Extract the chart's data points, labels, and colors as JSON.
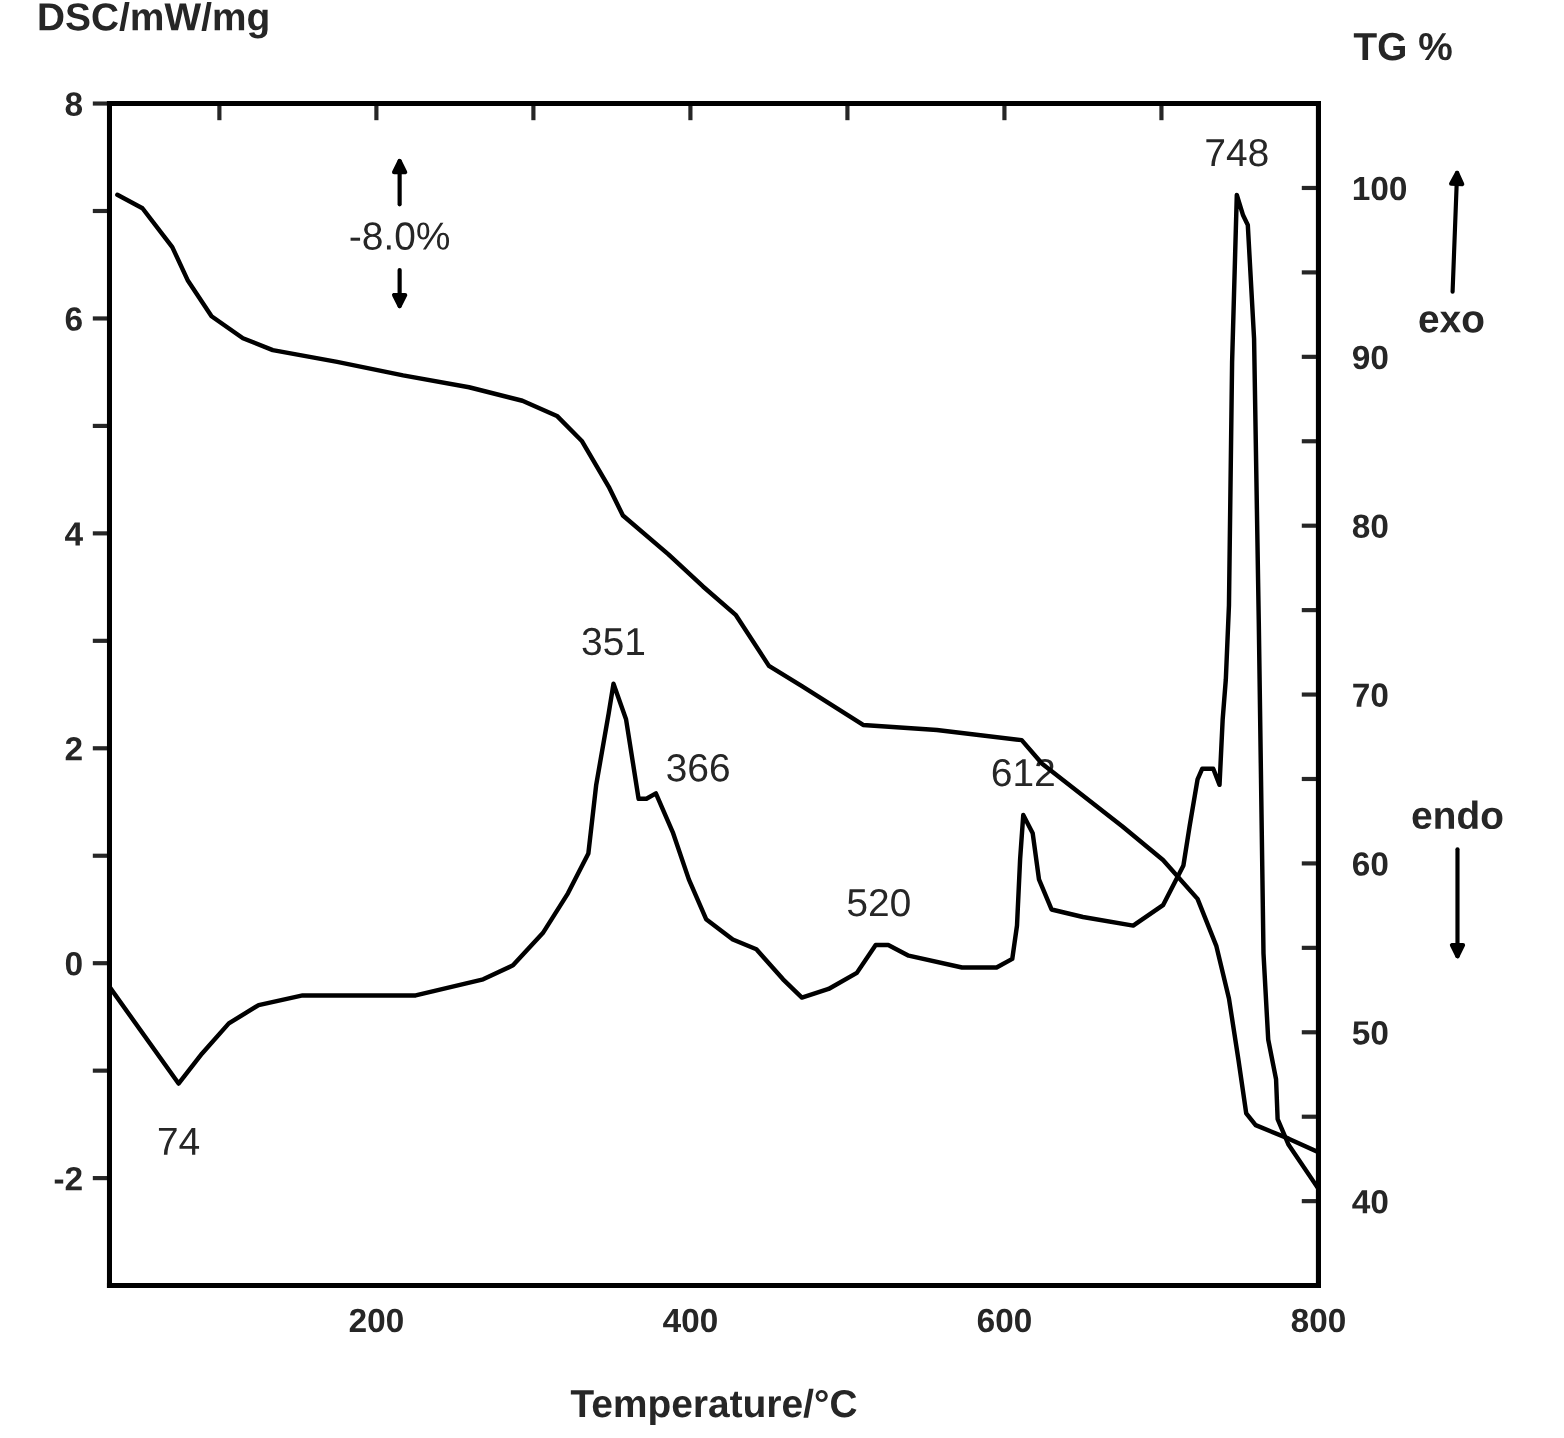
{
  "chart_data": {
    "type": "line",
    "xlabel": "Temperature/°C",
    "ylabel": "DSC/mW/mg",
    "y2label": "TG %",
    "xlim": [
      30,
      800
    ],
    "xticks": [
      {
        "value": 100,
        "label": null
      },
      200,
      {
        "value": 300,
        "label": null
      },
      400,
      {
        "value": 500,
        "label": null
      },
      600,
      {
        "value": 700,
        "label": null
      },
      800
    ],
    "ylim": [
      -3,
      8
    ],
    "yticks": [
      -2,
      {
        "value": -1,
        "label": null
      },
      0,
      {
        "value": 1,
        "label": null
      },
      2,
      {
        "value": 3,
        "label": null
      },
      4,
      {
        "value": 5,
        "label": null
      },
      6,
      {
        "value": 7,
        "label": null
      },
      8
    ],
    "y2lim": [
      35,
      105
    ],
    "y2ticks": [
      40,
      {
        "value": 45,
        "label": null
      },
      50,
      {
        "value": 55,
        "label": null
      },
      60,
      {
        "value": 65,
        "label": null
      },
      70,
      {
        "value": 75,
        "label": null
      },
      80,
      {
        "value": 85,
        "label": null
      },
      90,
      {
        "value": 95,
        "label": null
      },
      100
    ],
    "grid": false,
    "legend": false,
    "marker": "none",
    "line_style": "solid",
    "series": [
      {
        "color": "#000000",
        "x": [
          30,
          74,
          89,
          106,
          125,
          153,
          225,
          268,
          287,
          306,
          322,
          335,
          340,
          348,
          351,
          359,
          367,
          372,
          378,
          389,
          399,
          410,
          427,
          442,
          459,
          471,
          488,
          506,
          518,
          526,
          539,
          573,
          595,
          605,
          608,
          610,
          612,
          618,
          622,
          630,
          650,
          682,
          701,
          714,
          718,
          723,
          726,
          733,
          737,
          739,
          741,
          743,
          745,
          748,
          752,
          755,
          759,
          762,
          765,
          768,
          773,
          774,
          781,
          800
        ],
        "values": [
          -0.22,
          -1.12,
          -0.84,
          -0.56,
          -0.39,
          -0.3,
          -0.3,
          -0.15,
          -0.02,
          0.28,
          0.65,
          1.02,
          1.66,
          2.33,
          2.6,
          2.27,
          1.53,
          1.53,
          1.58,
          1.21,
          0.78,
          0.41,
          0.22,
          0.13,
          -0.15,
          -0.32,
          -0.24,
          -0.09,
          0.17,
          0.17,
          0.07,
          -0.04,
          -0.04,
          0.04,
          0.35,
          0.97,
          1.38,
          1.21,
          0.78,
          0.5,
          0.43,
          0.35,
          0.54,
          0.91,
          1.28,
          1.71,
          1.81,
          1.81,
          1.66,
          2.27,
          2.64,
          3.33,
          5.59,
          7.15,
          6.96,
          6.87,
          5.81,
          3.17,
          0.09,
          -0.71,
          -1.08,
          -1.45,
          -1.69,
          -2.1
        ]
      },
      {
        "color": "#000000",
        "axis": "y2",
        "x": [
          35,
          51,
          70,
          80,
          95,
          115,
          134,
          175,
          217,
          259,
          293,
          315,
          331,
          348,
          357,
          386,
          408,
          429,
          450,
          471,
          510,
          557,
          611,
          624,
          675,
          701,
          723,
          735,
          743,
          749,
          754,
          760,
          781,
          800
        ],
        "values": [
          99.6,
          98.8,
          96.5,
          94.5,
          92.4,
          91.1,
          90.4,
          89.7,
          88.9,
          88.2,
          87.4,
          86.5,
          85.0,
          82.3,
          80.6,
          78.3,
          76.4,
          74.7,
          71.7,
          70.5,
          68.2,
          67.9,
          67.3,
          65.9,
          62.2,
          60.2,
          57.9,
          55.1,
          52.0,
          48.4,
          45.2,
          44.5,
          43.7,
          42.9
        ]
      }
    ],
    "annotations": [
      {
        "text": "74",
        "x": 74,
        "y": -1.12
      },
      {
        "text": "351",
        "x": 351,
        "y": 2.6
      },
      {
        "text": "366",
        "x": 366,
        "y": 1.58
      },
      {
        "text": "520",
        "x": 520,
        "y": 0.17
      },
      {
        "text": "612",
        "x": 612,
        "y": 1.38
      },
      {
        "text": "748",
        "x": 748,
        "y": 7.15
      },
      "-8.0%",
      "exo",
      "endo"
    ]
  }
}
